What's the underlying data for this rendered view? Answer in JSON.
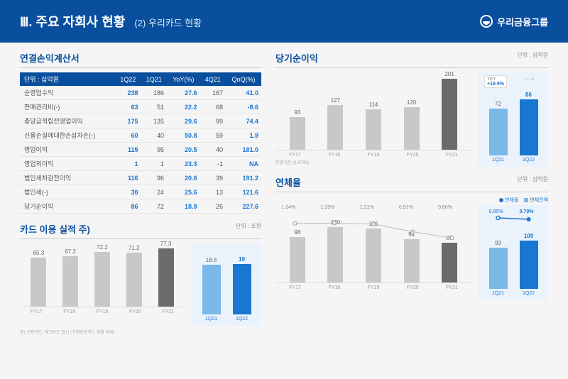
{
  "header": {
    "title": "Ⅲ. 주요 자회사 현황",
    "subtitle": "(2) 우리카드 현황",
    "logo_text": "우리금융그룹"
  },
  "income": {
    "title": "연결손익계산서",
    "unit_label": "단위 : 십억원",
    "columns": [
      "",
      "1Q22",
      "1Q21",
      "YoY(%)",
      "4Q21",
      "QoQ(%)"
    ],
    "rows": [
      {
        "label": "순영업수익",
        "q1_22": "238",
        "q1_21": "186",
        "yoy": "27.6",
        "q4_21": "167",
        "qoq": "41.0"
      },
      {
        "label": "판매관리비(-)",
        "q1_22": "63",
        "q1_21": "51",
        "yoy": "22.2",
        "q4_21": "68",
        "qoq": "-8.6"
      },
      {
        "label": "충당금적립전영업이익",
        "q1_22": "175",
        "q1_21": "135",
        "yoy": "29.6",
        "q4_21": "99",
        "qoq": "74.4"
      },
      {
        "label": "신용손실에대한손상차손(-)",
        "q1_22": "60",
        "q1_21": "40",
        "yoy": "50.8",
        "q4_21": "59",
        "qoq": "1.9"
      },
      {
        "label": "영업이익",
        "q1_22": "115",
        "q1_21": "95",
        "yoy": "20.5",
        "q4_21": "40",
        "qoq": "181.0"
      },
      {
        "label": "영업외이익",
        "q1_22": "1",
        "q1_21": "1",
        "yoy": "23.3",
        "q4_21": "-1",
        "qoq": "NA"
      },
      {
        "label": "법인세차감전이익",
        "q1_22": "116",
        "q1_21": "96",
        "yoy": "20.6",
        "q4_21": "39",
        "qoq": "191.2"
      },
      {
        "label": "법인세(-)",
        "q1_22": "30",
        "q1_21": "24",
        "yoy": "25.6",
        "q4_21": "13",
        "qoq": "121.6"
      },
      {
        "label": "당기순이익",
        "q1_22": "86",
        "q1_21": "72",
        "yoy": "18.9",
        "q4_21": "26",
        "qoq": "227.6"
      }
    ]
  },
  "card_usage": {
    "title": "카드 이용 실적 주)",
    "unit": "단위 : 조원",
    "categories": [
      "FY17",
      "FY18",
      "FY19",
      "FY20",
      "FY21"
    ],
    "values": [
      65.3,
      67.2,
      72.2,
      71.2,
      77.3
    ],
    "max": 80,
    "side": {
      "categories": [
        "1Q21",
        "1Q22"
      ],
      "values": [
        18.6,
        19.0
      ],
      "max": 20
    },
    "footnote": "주) 신용카드, 체크카드 합산 (구매전용카드 제품 제외)"
  },
  "net_income": {
    "title": "당기순이익",
    "unit": "단위 : 십억원",
    "categories": [
      "FY17",
      "FY18",
      "FY19",
      "FY20",
      "FY21"
    ],
    "values": [
      93,
      127,
      114,
      120,
      201
    ],
    "max": 210,
    "footnote": "연결기준 (K-IFRS)",
    "side": {
      "categories": [
        "1Q21",
        "1Q22"
      ],
      "values": [
        72,
        86
      ],
      "max": 100,
      "yoy": "+18.9%"
    }
  },
  "delinquency": {
    "title": "연체율",
    "unit": "단위 : 십억원",
    "legend": {
      "rate": "연체율",
      "balance": "연체잔액"
    },
    "categories": [
      "FY17",
      "FY18",
      "FY19",
      "FY20",
      "FY21"
    ],
    "balances": [
      98,
      120,
      116,
      94,
      86
    ],
    "rates": [
      "1.24%",
      "1.25%",
      "1.21%",
      "0.91%",
      "0.66%"
    ],
    "rate_vals": [
      1.24,
      1.25,
      1.21,
      0.91,
      0.66
    ],
    "max_balance": 130,
    "side": {
      "categories": [
        "1Q21",
        "1Q22"
      ],
      "balances": [
        93,
        109
      ],
      "rates": [
        "0.85%",
        "0.79%"
      ],
      "max_balance": 120
    }
  }
}
